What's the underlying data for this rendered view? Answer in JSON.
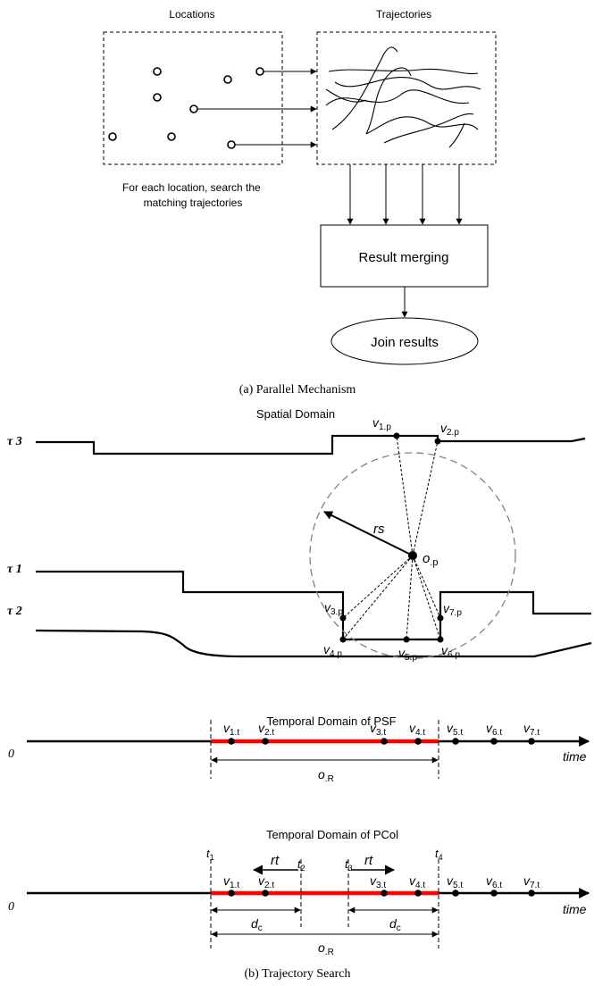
{
  "figure_a": {
    "locations_label": "Locations",
    "trajectories_label": "Trajectories",
    "caption_line1": "For each location, search the",
    "caption_line2": "matching trajectories",
    "merge_label": "Result merging",
    "join_label": "Join results",
    "subcaption": "(a) Parallel Mechanism"
  },
  "figure_b": {
    "spatial_title": "Spatial Domain",
    "tau3": "τ 3",
    "tau1": "τ 1",
    "tau2": "τ 2",
    "radius_label": "rs",
    "center_label_main": "o",
    "center_label_sub": ".p",
    "spatial_vertices": [
      {
        "main": "v",
        "sub": "1.p"
      },
      {
        "main": "v",
        "sub": "2.p"
      },
      {
        "main": "v",
        "sub": "3.p"
      },
      {
        "main": "v",
        "sub": "4.p"
      },
      {
        "main": "v",
        "sub": "5.p"
      },
      {
        "main": "v",
        "sub": "6.p"
      },
      {
        "main": "v",
        "sub": "7.p"
      }
    ],
    "psf_title": "Temporal Domain of PSF",
    "pcol_title": "Temporal Domain of PCol",
    "zero_label": "0",
    "time_label": "time",
    "time_vertices": [
      {
        "main": "v",
        "sub": "1.t"
      },
      {
        "main": "v",
        "sub": "2.t"
      },
      {
        "main": "v",
        "sub": "3.t"
      },
      {
        "main": "v",
        "sub": "4.t"
      },
      {
        "main": "v",
        "sub": "5.t"
      },
      {
        "main": "v",
        "sub": "6.t"
      },
      {
        "main": "v",
        "sub": "7.t"
      }
    ],
    "range_label_main": "o",
    "range_label_sub": ".R",
    "t_labels": [
      {
        "main": "t",
        "sub": "1"
      },
      {
        "main": "t",
        "sub": "2"
      },
      {
        "main": "t",
        "sub": "3"
      },
      {
        "main": "t",
        "sub": "4"
      }
    ],
    "rt_label": "rt",
    "dc_main": "d",
    "dc_sub": "c",
    "subcaption": "(b) Trajectory Search"
  },
  "colors": {
    "ink": "#000000",
    "highlight": "#ff0000",
    "dashed_circle": "#808080"
  }
}
